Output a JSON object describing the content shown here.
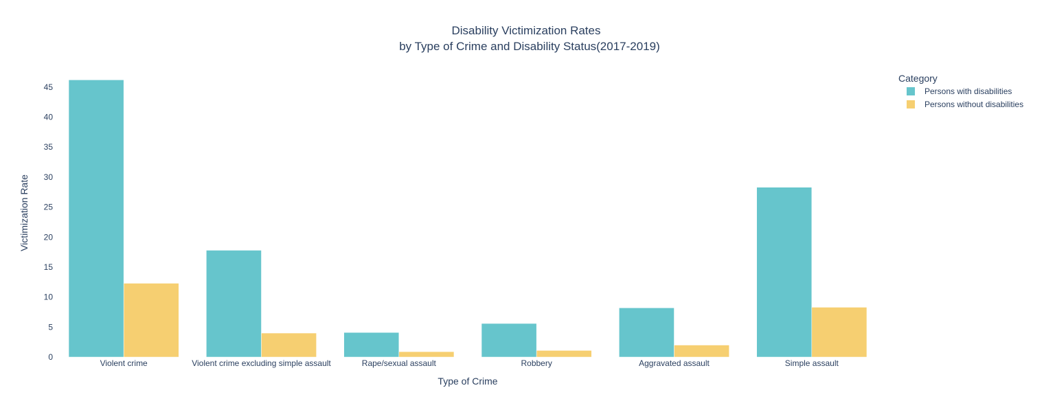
{
  "chart_data": {
    "type": "bar",
    "title_lines": [
      "Disability Victimization Rates",
      "by Type of Crime and Disability Status(2017-2019)"
    ],
    "xlabel": "Type of Crime",
    "ylabel": "Victimization Rate",
    "categories": [
      "Violent crime",
      "Violent crime excluding simple assault",
      "Rape/sexual assault",
      "Robbery",
      "Aggravated assault",
      "Simple assault"
    ],
    "series": [
      {
        "name": "Persons with disabilities",
        "color": "#66c5cc",
        "values": [
          46.2,
          17.8,
          4.1,
          5.6,
          8.2,
          28.3
        ]
      },
      {
        "name": "Persons without disabilities",
        "color": "#f6cf71",
        "values": [
          12.3,
          4.0,
          0.9,
          1.1,
          2.0,
          8.3
        ]
      }
    ],
    "ylim": [
      0,
      47.5
    ],
    "yticks": [
      0,
      5,
      10,
      15,
      20,
      25,
      30,
      35,
      40,
      45
    ],
    "grid": false,
    "legend": {
      "title": "Category",
      "placement": "top-right"
    }
  }
}
